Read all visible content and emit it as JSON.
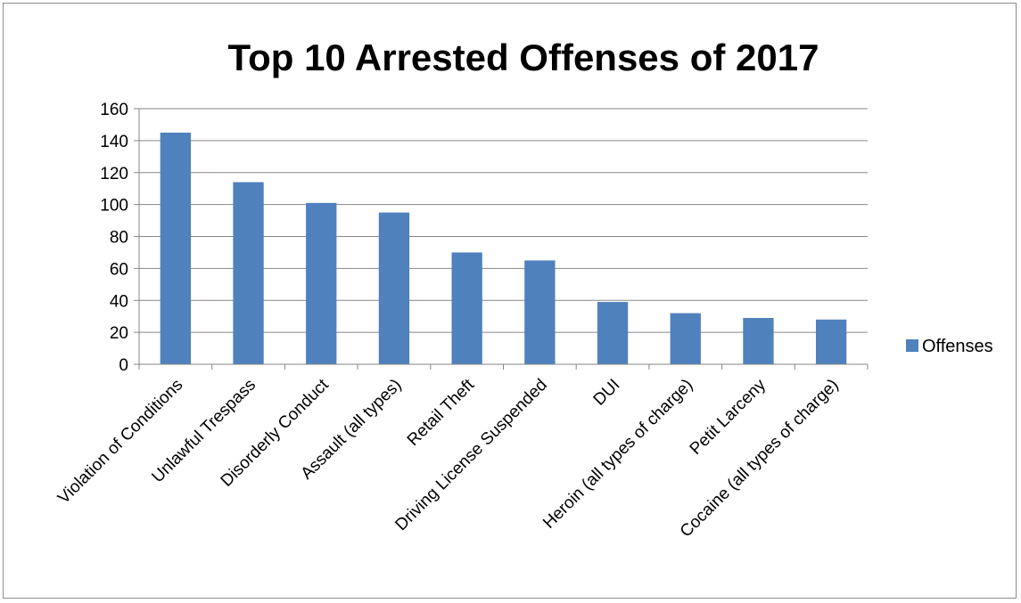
{
  "chart_data": {
    "type": "bar",
    "title": "Top 10 Arrested Offenses of 2017",
    "xlabel": "",
    "ylabel": "",
    "categories": [
      "Violation of Conditions",
      "Unlawful Trespass",
      "Disorderly Conduct",
      "Assault (all types)",
      "Retail Theft",
      "Driving License Suspended",
      "DUI",
      "Heroin (all types of charge)",
      "Petit Larceny",
      "Cocaine (all types of charge)"
    ],
    "series": [
      {
        "name": "Offenses",
        "values": [
          145,
          114,
          101,
          95,
          70,
          65,
          39,
          32,
          29,
          28
        ],
        "color": "#4f81bd"
      }
    ],
    "ylim": [
      0,
      160
    ],
    "yticks": [
      0,
      20,
      40,
      60,
      80,
      100,
      120,
      140,
      160
    ],
    "grid": true,
    "legend_position": "right"
  }
}
